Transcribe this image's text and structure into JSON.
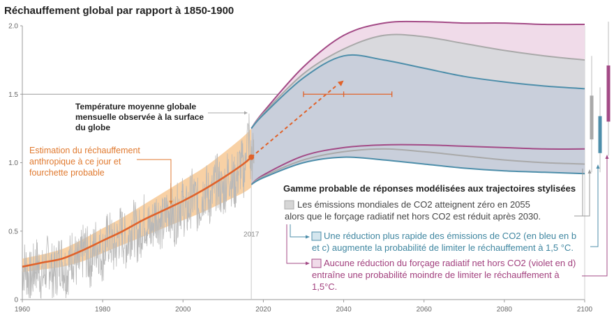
{
  "chart_data": {
    "type": "line",
    "title": "Réchauffement global par rapport à 1850-1900",
    "xlim": [
      1960,
      2100
    ],
    "ylim": [
      0,
      2.0
    ],
    "x_ticks": [
      "1960",
      "1980",
      "2000",
      "2020",
      "2040",
      "2060",
      "2080",
      "2100"
    ],
    "y_ticks": [
      "0",
      "0.5",
      "1.0",
      "1.5",
      "2.0"
    ],
    "reference_line": 1.5,
    "marker_year_label": "2017",
    "series": [
      {
        "name": "Estimation du réchauffement anthropique à ce jour et fourchette probable",
        "color": "#e0622a",
        "x": [
          1960,
          1965,
          1970,
          1975,
          1980,
          1985,
          1990,
          1995,
          2000,
          2005,
          2010,
          2015,
          2017
        ],
        "y": [
          0.24,
          0.27,
          0.3,
          0.36,
          0.43,
          0.5,
          0.58,
          0.65,
          0.72,
          0.8,
          0.89,
          0.99,
          1.04
        ],
        "band_low": [
          0.2,
          0.22,
          0.24,
          0.28,
          0.34,
          0.4,
          0.46,
          0.52,
          0.58,
          0.64,
          0.71,
          0.78,
          0.82
        ],
        "band_high": [
          0.3,
          0.33,
          0.37,
          0.44,
          0.52,
          0.6,
          0.69,
          0.78,
          0.87,
          0.96,
          1.07,
          1.19,
          1.25
        ]
      },
      {
        "name": "Température moyenne globale mensuelle observée à la surface du globe",
        "color": "#b5b5b5"
      },
      {
        "name": "Les émissions mondiales de CO2 atteignent zéro en 2055 alors que le forçage radiatif net hors CO2 est réduit après 2030.",
        "color": "#a9a9a9",
        "x": [
          2017,
          2020,
          2030,
          2040,
          2050,
          2060,
          2070,
          2080,
          2090,
          2100
        ],
        "upper": [
          1.25,
          1.36,
          1.65,
          1.83,
          1.93,
          1.92,
          1.87,
          1.82,
          1.78,
          1.75
        ],
        "lower": [
          0.84,
          0.9,
          1.02,
          1.08,
          1.1,
          1.08,
          1.05,
          1.02,
          1.0,
          0.99
        ]
      },
      {
        "name": "Une réduction plus rapide des émissions de CO2 (en bleu en b et c) augmente la probabilité de limiter le réchauffement à 1,5 °C.",
        "color": "#4d8eaa",
        "x": [
          2017,
          2020,
          2030,
          2040,
          2050,
          2060,
          2070,
          2080,
          2090,
          2100
        ],
        "upper": [
          1.25,
          1.35,
          1.62,
          1.78,
          1.75,
          1.69,
          1.63,
          1.59,
          1.56,
          1.54
        ],
        "lower": [
          0.84,
          0.89,
          1.0,
          1.04,
          1.02,
          0.99,
          0.96,
          0.94,
          0.93,
          0.92
        ]
      },
      {
        "name": "Aucune réduction du forçage radiatif net hors CO2 (violet en d) entraîne une probabilité moindre de limiter le réchauffement à 1,5°C.",
        "color": "#a34a86",
        "x": [
          2017,
          2020,
          2030,
          2040,
          2050,
          2060,
          2070,
          2080,
          2090,
          2100
        ],
        "upper": [
          1.25,
          1.37,
          1.7,
          1.93,
          2.02,
          2.03,
          2.02,
          2.02,
          2.01,
          2.01
        ],
        "lower": [
          0.84,
          0.91,
          1.05,
          1.11,
          1.13,
          1.13,
          1.12,
          1.11,
          1.1,
          1.1
        ]
      }
    ],
    "projection_arrow": {
      "from_year": 2017,
      "from_value": 1.04,
      "to_year": 2040,
      "to_value": 1.6
    },
    "crossing_range": {
      "from_year": 2030,
      "central_year": 2040,
      "to_year": 2052,
      "value": 1.5
    },
    "range_bars_2100": [
      {
        "color": "#a9a9a9",
        "low": 1.17,
        "high": 1.49,
        "whisker_low": 0.93,
        "whisker_high": 1.78
      },
      {
        "color": "#4d8eaa",
        "low": 1.07,
        "high": 1.34,
        "whisker_low": 0.93,
        "whisker_high": 1.55
      },
      {
        "color": "#a34a86",
        "low": 1.3,
        "high": 1.71,
        "whisker_low": 1.05,
        "whisker_high": 2.03
      }
    ],
    "annotations": {
      "observed": [
        "Température moyenne globale",
        "mensuelle observée à la surface",
        "du globe"
      ],
      "anthropogenic": [
        "Estimation du réchauffement",
        "anthropique à ce jour et",
        "fourchette probable"
      ],
      "legend_title": "Gamme probable de réponses modélisées aux trajectoires stylisées",
      "grey_lines": [
        "Les émissions mondiales de CO2 atteignent zéro en 2055",
        "alors que le forçage radiatif net hors CO2 est réduit après 2030."
      ],
      "blue_lines": [
        "Une réduction plus rapide des émissions de CO2 (en bleu en b",
        "et c) augmente la probabilité de limiter le réchauffement à 1,5 °C."
      ],
      "violet_lines": [
        "Aucune réduction du forçage radiatif net hors CO2 (violet en d)",
        "entraîne une probabilité moindre de limiter le réchauffement à",
        "1,5°C."
      ]
    },
    "legend_placement": "bottom-right",
    "grid": false
  }
}
